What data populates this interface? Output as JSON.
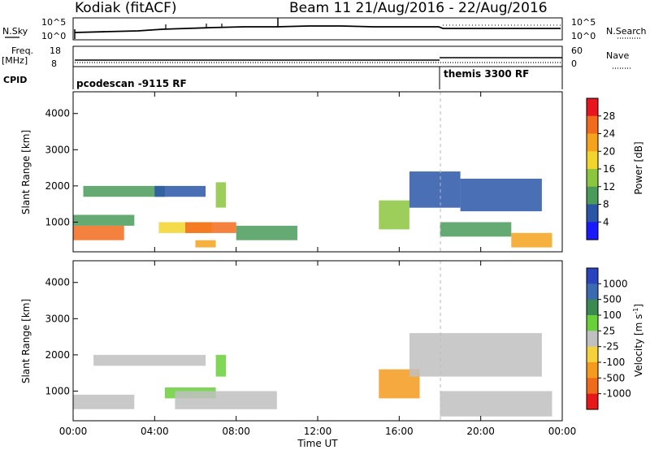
{
  "header": {
    "station": "Kodiak (fitACF)",
    "beam_info": "Beam 11 21/Aug/2016 - 22/Aug/2016"
  },
  "noise_panel": {
    "left_label": "N.Sky",
    "right_label": "N.Search",
    "left_ticks": [
      "10^5",
      "10^0"
    ],
    "right_ticks": [
      "10^5",
      "10^0"
    ]
  },
  "freq_panel": {
    "left_label_line1": "Freq.",
    "left_label_line2": "[MHz]",
    "right_label": "Nave",
    "left_ticks": [
      "18",
      "8"
    ],
    "right_ticks": [
      "60",
      "0"
    ]
  },
  "cpid_panel": {
    "label": "CPID",
    "modes": [
      {
        "name": "pcodescan -9115 RF",
        "start_hour": 0
      },
      {
        "name": "themis 3300 RF",
        "start_hour": 18
      }
    ]
  },
  "power_colorbar": {
    "label": "Power [dB]",
    "ticks": [
      "28",
      "24",
      "20",
      "16",
      "12",
      "8",
      "4"
    ],
    "colors": [
      "#e8141e",
      "#f26b1c",
      "#f5a21c",
      "#f2d52c",
      "#8cc63e",
      "#4a9a5a",
      "#2a56a8",
      "#1a1aff"
    ]
  },
  "velocity_colorbar": {
    "label_main": "Velocity [m s",
    "label_sup": "-1",
    "label_end": "]",
    "ticks": [
      "1000",
      "500",
      "100",
      "25",
      "-25",
      "-100",
      "-500",
      "-1000"
    ],
    "colors": [
      "#2a44c0",
      "#3a6ab0",
      "#3a8a52",
      "#6ad03a",
      "#c0c0c0",
      "#f5d23c",
      "#f59a1c",
      "#f06a1c",
      "#e81818"
    ]
  },
  "axes": {
    "ylabel": "Slant Range [km]",
    "y_ticks": [
      "4000",
      "3000",
      "2000",
      "1000"
    ],
    "x_ticks": [
      "00:00",
      "04:00",
      "08:00",
      "12:00",
      "16:00",
      "20:00",
      "00:00"
    ],
    "xlabel": "Time UT"
  },
  "chart_data": {
    "type": "heatmap",
    "x_range_hours": [
      0,
      24
    ],
    "y_range_km": [
      180,
      4600
    ],
    "power_regions": [
      {
        "t0": 0.0,
        "t1": 2.5,
        "r0": 500,
        "r1": 900,
        "level": 26
      },
      {
        "t0": 0.0,
        "t1": 3.0,
        "r0": 900,
        "r1": 1200,
        "level": 12
      },
      {
        "t0": 0.5,
        "t1": 4.5,
        "r0": 1700,
        "r1": 2000,
        "level": 12
      },
      {
        "t0": 4.0,
        "t1": 6.5,
        "r0": 1700,
        "r1": 2000,
        "level": 8
      },
      {
        "t0": 4.2,
        "t1": 6.8,
        "r0": 700,
        "r1": 1000,
        "level": 18
      },
      {
        "t0": 5.5,
        "t1": 8.0,
        "r0": 700,
        "r1": 1000,
        "level": 28
      },
      {
        "t0": 6.0,
        "t1": 7.0,
        "r0": 300,
        "r1": 500,
        "level": 24
      },
      {
        "t0": 7.0,
        "t1": 7.5,
        "r0": 1400,
        "r1": 2100,
        "level": 16
      },
      {
        "t0": 8.0,
        "t1": 11.0,
        "r0": 500,
        "r1": 900,
        "level": 12
      },
      {
        "t0": 15.0,
        "t1": 16.5,
        "r0": 800,
        "r1": 1600,
        "level": 16
      },
      {
        "t0": 16.5,
        "t1": 19.0,
        "r0": 1400,
        "r1": 2400,
        "level": 8
      },
      {
        "t0": 19.0,
        "t1": 23.0,
        "r0": 1300,
        "r1": 2200,
        "level": 8
      },
      {
        "t0": 18.0,
        "t1": 21.5,
        "r0": 600,
        "r1": 1000,
        "level": 12
      },
      {
        "t0": 21.5,
        "t1": 23.5,
        "r0": 300,
        "r1": 700,
        "level": 24
      }
    ],
    "velocity_regions": [
      {
        "t0": 0.0,
        "t1": 3.0,
        "r0": 500,
        "r1": 900,
        "level": 0
      },
      {
        "t0": 1.0,
        "t1": 6.5,
        "r0": 1700,
        "r1": 2000,
        "level": 0
      },
      {
        "t0": 4.5,
        "t1": 7.0,
        "r0": 800,
        "r1": 1100,
        "level": 50
      },
      {
        "t0": 5.0,
        "t1": 10.0,
        "r0": 500,
        "r1": 1000,
        "level": 0
      },
      {
        "t0": 7.0,
        "t1": 7.5,
        "r0": 1400,
        "r1": 2000,
        "level": 50
      },
      {
        "t0": 15.0,
        "t1": 17.0,
        "r0": 800,
        "r1": 1600,
        "level": -250
      },
      {
        "t0": 16.5,
        "t1": 23.0,
        "r0": 1400,
        "r1": 2600,
        "level": 0
      },
      {
        "t0": 18.0,
        "t1": 23.5,
        "r0": 300,
        "r1": 1000,
        "level": 0
      }
    ]
  }
}
